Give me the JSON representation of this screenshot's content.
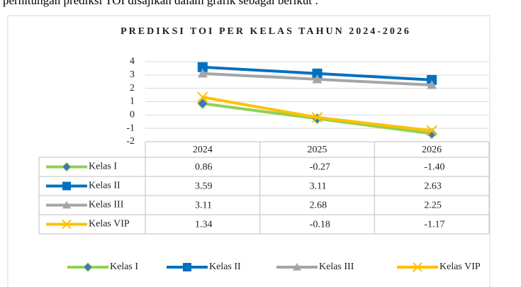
{
  "caption": "perhitungan prediksi TOI disajikan dalam grafik sebagai berikut :",
  "chart_data": {
    "type": "line",
    "title": "PREDIKSI TOI PER KELAS TAHUN 2024-2026",
    "categories": [
      "2024",
      "2025",
      "2026"
    ],
    "series": [
      {
        "name": "Kelas I",
        "color": "#92d050",
        "marker": "diamond",
        "marker_color": "#4472c4",
        "values": [
          0.86,
          -0.27,
          -1.4
        ],
        "value_labels": [
          "0.86",
          "-0.27",
          "-1.40"
        ]
      },
      {
        "name": "Kelas II",
        "color": "#0070c0",
        "marker": "square",
        "marker_color": "#0070c0",
        "values": [
          3.59,
          3.11,
          2.63
        ],
        "value_labels": [
          "3.59",
          "3.11",
          "2.63"
        ]
      },
      {
        "name": "Kelas III",
        "color": "#a5a5a5",
        "marker": "triangle",
        "marker_color": "#a5a5a5",
        "values": [
          3.11,
          2.68,
          2.25
        ],
        "value_labels": [
          "3.11",
          "2.68",
          "2.25"
        ]
      },
      {
        "name": "Kelas VIP",
        "color": "#ffc000",
        "marker": "x",
        "marker_color": "#ffc000",
        "values": [
          1.34,
          -0.18,
          -1.17
        ],
        "value_labels": [
          "1.34",
          "-0.18",
          "-1.17"
        ]
      }
    ],
    "ylim": [
      -2,
      4
    ],
    "yticks": [
      -2,
      -1,
      0,
      1,
      2,
      3,
      4
    ],
    "grid": true,
    "legend": "bottom"
  }
}
